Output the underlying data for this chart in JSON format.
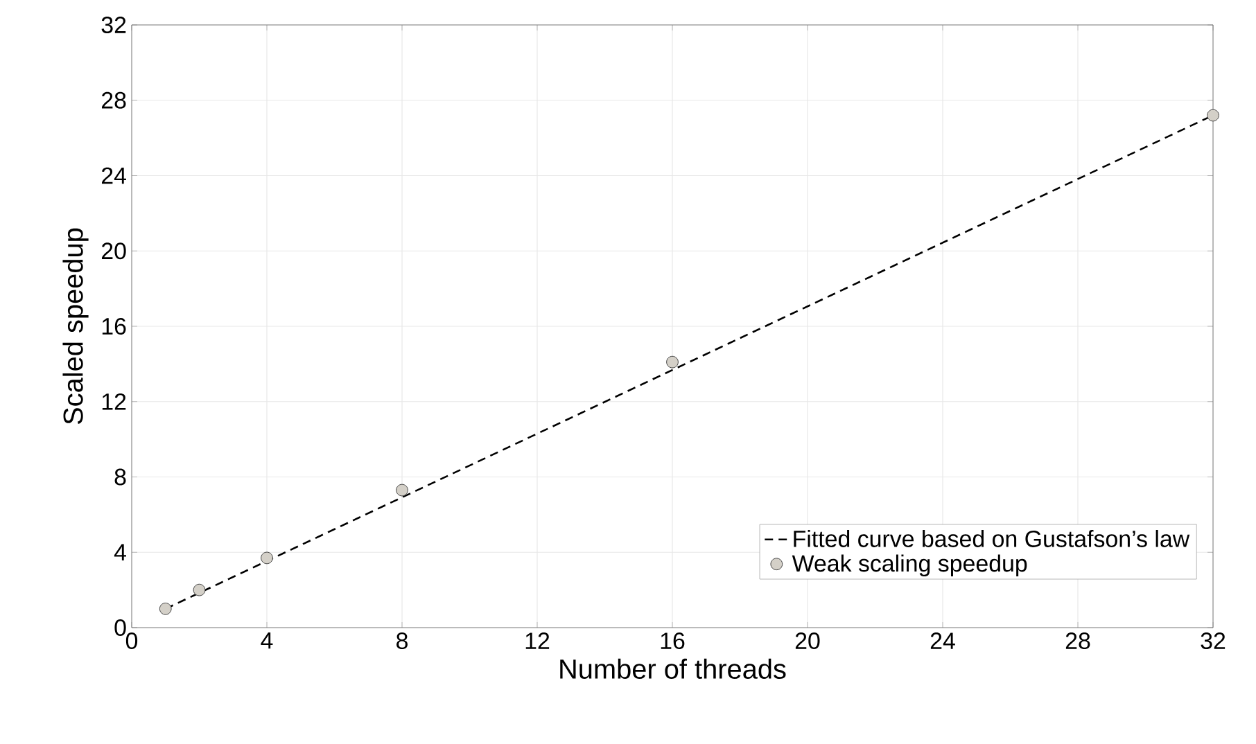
{
  "chart_data": {
    "type": "scatter",
    "xlabel": "Number of threads",
    "ylabel": "Scaled speedup",
    "xlim": [
      0,
      32
    ],
    "xticks": [
      0,
      4,
      8,
      12,
      16,
      20,
      24,
      28,
      32
    ],
    "ylim": [
      0,
      32
    ],
    "yticks": [
      0,
      4,
      8,
      12,
      16,
      20,
      24,
      28,
      32
    ],
    "grid": true,
    "legend": "bottom right",
    "series": [
      {
        "name": "Fitted curve based on Gustafson’s law",
        "type": "line",
        "line_style": "dashed",
        "marker": "none",
        "color": "#000000",
        "x": [
          1,
          32
        ],
        "values": [
          1.0,
          27.2
        ]
      },
      {
        "name": "Weak scaling speedup",
        "marker": "circle",
        "color": "#d4d0c8",
        "x": [
          1,
          2,
          4,
          8,
          16,
          32
        ],
        "values": [
          1.0,
          2.0,
          3.7,
          7.3,
          14.1,
          27.2
        ]
      }
    ]
  }
}
